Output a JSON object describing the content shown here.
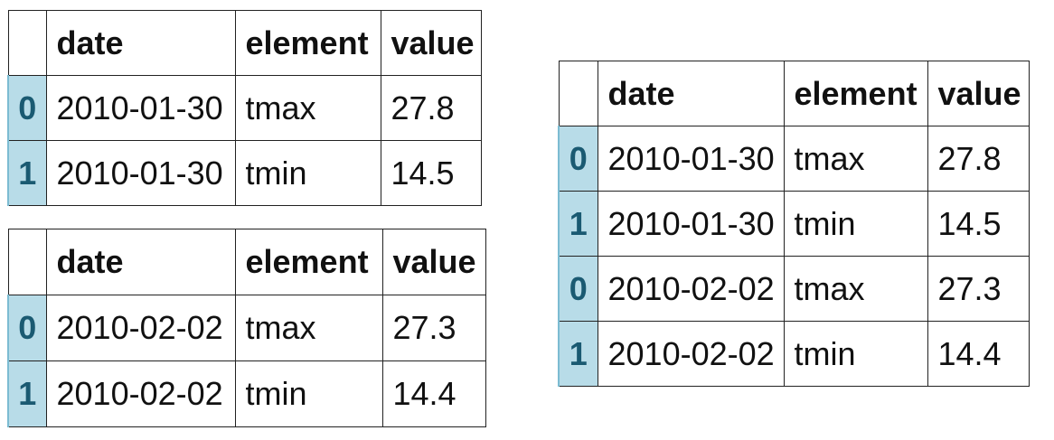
{
  "columns": [
    "date",
    "element",
    "value"
  ],
  "tables": {
    "top_left": {
      "rows": [
        {
          "index": "0",
          "date": "2010-01-30",
          "element": "tmax",
          "value": "27.8"
        },
        {
          "index": "1",
          "date": "2010-01-30",
          "element": "tmin",
          "value": "14.5"
        }
      ]
    },
    "bottom_left": {
      "rows": [
        {
          "index": "0",
          "date": "2010-02-02",
          "element": "tmax",
          "value": "27.3"
        },
        {
          "index": "1",
          "date": "2010-02-02",
          "element": "tmin",
          "value": "14.4"
        }
      ]
    },
    "right": {
      "rows": [
        {
          "index": "0",
          "date": "2010-01-30",
          "element": "tmax",
          "value": "27.8"
        },
        {
          "index": "1",
          "date": "2010-01-30",
          "element": "tmin",
          "value": "14.5"
        },
        {
          "index": "0",
          "date": "2010-02-02",
          "element": "tmax",
          "value": "27.3"
        },
        {
          "index": "1",
          "date": "2010-02-02",
          "element": "tmin",
          "value": "14.4"
        }
      ]
    }
  },
  "colors": {
    "index_background": "#b8dce8",
    "index_text": "#1a5a72",
    "border": "#222222"
  }
}
